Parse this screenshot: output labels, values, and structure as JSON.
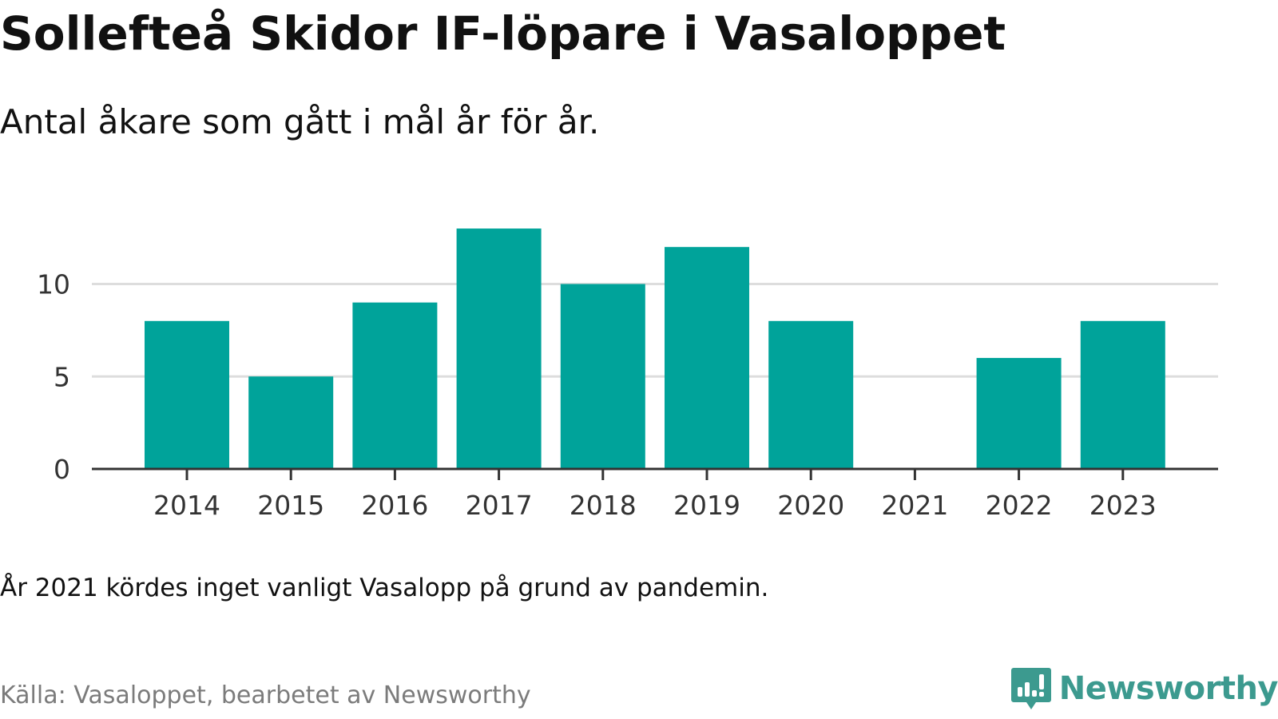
{
  "title": "Sollefteå Skidor IF-löpare i Vasaloppet",
  "subtitle": "Antal åkare som gått i mål år för år.",
  "note": "År 2021 kördes inget vanligt Vasalopp på grund av pandemin.",
  "source": "Källa: Vasaloppet, bearbetet av Newsworthy",
  "brand": {
    "name": "Newsworthy",
    "icon": "newsworthy-logo-icon",
    "color": "#3c9a8f"
  },
  "chart_data": {
    "type": "bar",
    "categories": [
      "2014",
      "2015",
      "2016",
      "2017",
      "2018",
      "2019",
      "2020",
      "2021",
      "2022",
      "2023"
    ],
    "values": [
      8,
      5,
      9,
      13,
      10,
      12,
      8,
      0,
      6,
      8
    ],
    "title": "Sollefteå Skidor IF-löpare i Vasaloppet",
    "subtitle": "Antal åkare som gått i mål år för år.",
    "xlabel": "",
    "ylabel": "",
    "ylim": [
      0,
      13
    ],
    "yticks": [
      0,
      5,
      10
    ],
    "grid": true,
    "bar_color": "#00a39a",
    "grid_color": "#dddddd",
    "axis_color": "#333333"
  }
}
